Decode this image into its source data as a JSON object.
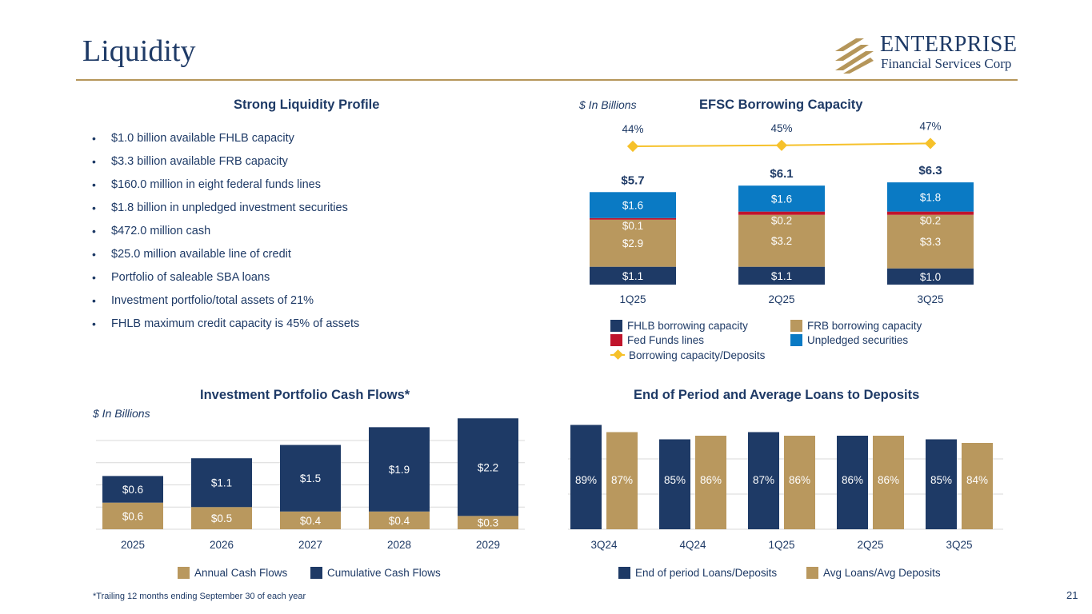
{
  "page": {
    "title": "Liquidity",
    "page_number": "21",
    "footnote": "*Trailing 12 months ending September 30 of each year"
  },
  "logo": {
    "name": "ENTERPRISE",
    "subtitle": "Financial Services Corp",
    "color": "#b5965a"
  },
  "colors": {
    "navy": "#1e3a66",
    "gold": "#b9985e",
    "red": "#c0142b",
    "blue": "#0a7ac4",
    "line": "#f6c12a"
  },
  "liquidity_profile": {
    "title": "Strong Liquidity Profile",
    "bullets": [
      "$1.0 billion available FHLB capacity",
      "$3.3 billion available FRB capacity",
      "$160.0 million in eight federal funds lines",
      "$1.8 billion in unpledged investment securities",
      "$472.0 million cash",
      "$25.0 million available line of credit",
      "Portfolio of saleable SBA loans",
      "Investment portfolio/total assets of 21%",
      "FHLB maximum credit capacity is 45% of assets"
    ]
  },
  "chart_data": [
    {
      "id": "borrowing",
      "type": "bar",
      "stacked": true,
      "title": "EFSC Borrowing Capacity",
      "unit_note": "$ In Billions",
      "categories": [
        "1Q25",
        "2Q25",
        "3Q25"
      ],
      "totals": [
        "$5.7",
        "$6.1",
        "$6.3"
      ],
      "series": [
        {
          "name": "FHLB borrowing capacity",
          "values": [
            1.1,
            1.1,
            1.0
          ],
          "labels": [
            "$1.1",
            "$1.1",
            "$1.0"
          ],
          "color": "#1e3a66"
        },
        {
          "name": "FRB borrowing capacity",
          "values": [
            2.9,
            3.2,
            3.3
          ],
          "labels": [
            "$2.9",
            "$3.2",
            "$3.3"
          ],
          "color": "#b9985e"
        },
        {
          "name": "Fed Funds lines",
          "values": [
            0.1,
            0.2,
            0.2
          ],
          "labels": [
            "$0.1",
            "$0.2",
            "$0.2"
          ],
          "color": "#c0142b"
        },
        {
          "name": "Unpledged securities",
          "values": [
            1.6,
            1.6,
            1.8
          ],
          "labels": [
            "$1.6",
            "$1.6",
            "$1.8"
          ],
          "color": "#0a7ac4"
        }
      ],
      "line_series": {
        "name": "Borrowing capacity/Deposits",
        "values": [
          44,
          45,
          47
        ],
        "labels": [
          "44%",
          "45%",
          "47%"
        ],
        "color": "#f6c12a"
      },
      "legend": "bottom"
    },
    {
      "id": "cashflows",
      "type": "bar",
      "stacked": true,
      "title": "Investment Portfolio Cash Flows*",
      "unit_note": "$ In Billions",
      "categories": [
        "2025",
        "2026",
        "2027",
        "2028",
        "2029"
      ],
      "series": [
        {
          "name": "Annual Cash Flows",
          "values": [
            0.6,
            0.5,
            0.4,
            0.4,
            0.3
          ],
          "labels": [
            "$0.6",
            "$0.5",
            "$0.4",
            "$0.4",
            "$0.3"
          ],
          "color": "#b9985e"
        },
        {
          "name": "Cumulative Cash Flows",
          "values": [
            0.6,
            1.1,
            1.5,
            1.9,
            2.2
          ],
          "labels": [
            "$0.6",
            "$1.1",
            "$1.5",
            "$1.9",
            "$2.2"
          ],
          "color": "#1e3a66"
        }
      ],
      "grid": true,
      "legend": "bottom"
    },
    {
      "id": "loans",
      "type": "bar",
      "stacked": false,
      "title": "End of Period and Average Loans to Deposits",
      "categories": [
        "3Q24",
        "4Q24",
        "1Q25",
        "2Q25",
        "3Q25"
      ],
      "series": [
        {
          "name": "End of period Loans/Deposits",
          "values": [
            89,
            85,
            87,
            86,
            85
          ],
          "labels": [
            "89%",
            "85%",
            "87%",
            "86%",
            "85%"
          ],
          "color": "#1e3a66"
        },
        {
          "name": "Avg Loans/Avg Deposits",
          "values": [
            87,
            86,
            86,
            86,
            84
          ],
          "labels": [
            "87%",
            "86%",
            "86%",
            "86%",
            "84%"
          ],
          "color": "#b9985e"
        }
      ],
      "grid": true,
      "legend": "bottom"
    }
  ]
}
